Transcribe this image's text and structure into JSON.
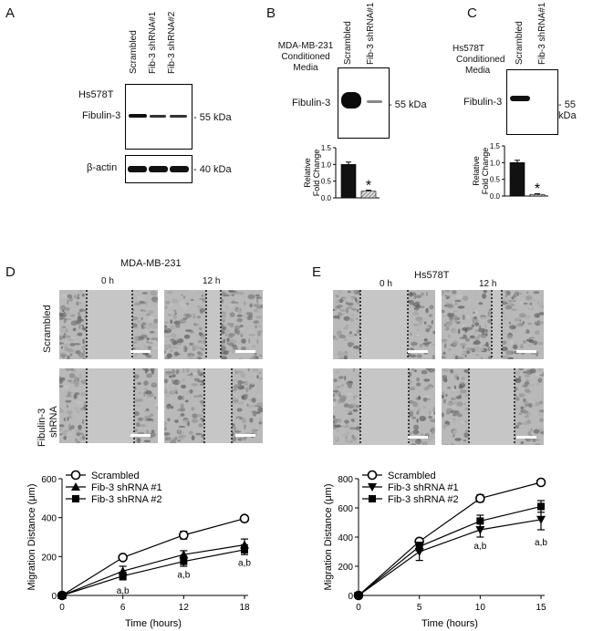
{
  "panels": {
    "A": {
      "letter": "A",
      "cell_line": "Hs578T",
      "lanes": [
        "Scrambled",
        "Fib-3 shRNA#1",
        "Fib-3 shRNA#2"
      ],
      "rows": [
        {
          "protein": "Fibulin-3",
          "kda": "55 kDa"
        },
        {
          "protein": "β-actin",
          "kda": "40 kDa"
        }
      ]
    },
    "B": {
      "letter": "B",
      "title": [
        "MDA-MB-231",
        "Conditioned",
        "Media"
      ],
      "lanes": [
        "Scrambled",
        "Fib-3 shRNA#1"
      ],
      "protein": "Fibulin-3",
      "kda": "55 kDa",
      "ylabel": [
        "Relative",
        "Fold Change"
      ],
      "ticks": [
        "0.0",
        "0.5",
        "1.0",
        "1.5"
      ],
      "star": "*"
    },
    "C": {
      "letter": "C",
      "title": [
        "Hs578T",
        "Conditioned",
        "Media"
      ],
      "lanes": [
        "Scrambled",
        "Fib-3 shRNA#1"
      ],
      "protein": "Fibulin-3",
      "kda": "55 kDa",
      "ylabel": [
        "Relative",
        "Fold Change"
      ],
      "ticks": [
        "0.0",
        "0.5",
        "1.0",
        "1.5"
      ],
      "star": "*"
    },
    "D": {
      "letter": "D",
      "title": "MDA-MB-231",
      "time_labels": [
        "0 h",
        "12 h"
      ],
      "row_labels": [
        "Scrambled",
        "Fibulin-3",
        "shRNA"
      ],
      "xlabel": "Time (hours)",
      "ylabel": "Migration Distance (μm)",
      "legend": [
        "Scrambled",
        "Fib-3 shRNA #1",
        "Fib-3 shRNA #2"
      ],
      "annotations": [
        "a,b",
        "a,b",
        "a,b"
      ]
    },
    "E": {
      "letter": "E",
      "title": "Hs578T",
      "time_labels": [
        "0 h",
        "12 h"
      ],
      "xlabel": "Time (hours)",
      "ylabel": "Migration Distance (μm)",
      "legend": [
        "Scrambled",
        "Fib-3 shRNA #1",
        "Fib-3 shRNA #2"
      ],
      "annotations": [
        "a,b",
        "a,b"
      ]
    }
  },
  "chart_data": [
    {
      "type": "bar",
      "panel": "B",
      "categories": [
        "Scrambled",
        "Fib-3 shRNA#1"
      ],
      "values": [
        1.0,
        0.2
      ],
      "errors": [
        0.07,
        0.03
      ],
      "ylabel": "Relative Fold Change",
      "ylim": [
        0,
        1.5
      ]
    },
    {
      "type": "bar",
      "panel": "C",
      "categories": [
        "Scrambled",
        "Fib-3 shRNA#1"
      ],
      "values": [
        1.0,
        0.05
      ],
      "errors": [
        0.07,
        0.02
      ],
      "ylabel": "Relative Fold Change",
      "ylim": [
        0,
        1.5
      ]
    },
    {
      "type": "line",
      "panel": "D",
      "x": [
        0,
        6,
        12,
        18
      ],
      "xticks": [
        0,
        6,
        12,
        18
      ],
      "yticks": [
        0,
        200,
        400,
        600
      ],
      "ylim": [
        0,
        600
      ],
      "xlim": [
        0,
        18
      ],
      "xlabel": "Time (hours)",
      "ylabel": "Migration Distance (μm)",
      "series": [
        {
          "name": "Scrambled",
          "marker": "circle-open",
          "values": [
            0,
            195,
            310,
            395
          ],
          "errors": [
            0,
            8,
            20,
            10
          ]
        },
        {
          "name": "Fib-3 shRNA #1",
          "marker": "triangle",
          "values": [
            0,
            125,
            210,
            260
          ],
          "errors": [
            0,
            25,
            20,
            30
          ]
        },
        {
          "name": "Fib-3 shRNA #2",
          "marker": "square",
          "values": [
            0,
            100,
            175,
            235
          ],
          "errors": [
            0,
            20,
            25,
            25
          ]
        }
      ]
    },
    {
      "type": "line",
      "panel": "E",
      "x": [
        0,
        5,
        10,
        15
      ],
      "xticks": [
        0,
        5,
        10,
        15
      ],
      "yticks": [
        0,
        200,
        400,
        600,
        800
      ],
      "ylim": [
        0,
        800
      ],
      "xlim": [
        0,
        15
      ],
      "xlabel": "Time (hours)",
      "ylabel": "Migration Distance (μm)",
      "series": [
        {
          "name": "Scrambled",
          "marker": "circle-open",
          "values": [
            0,
            370,
            665,
            775
          ],
          "errors": [
            0,
            12,
            25,
            12
          ]
        },
        {
          "name": "Fib-3 shRNA #1",
          "marker": "triangle-down",
          "values": [
            0,
            300,
            450,
            520
          ],
          "errors": [
            0,
            60,
            50,
            70
          ]
        },
        {
          "name": "Fib-3 shRNA #2",
          "marker": "square",
          "values": [
            0,
            335,
            510,
            610
          ],
          "errors": [
            0,
            30,
            40,
            40
          ]
        }
      ]
    }
  ]
}
